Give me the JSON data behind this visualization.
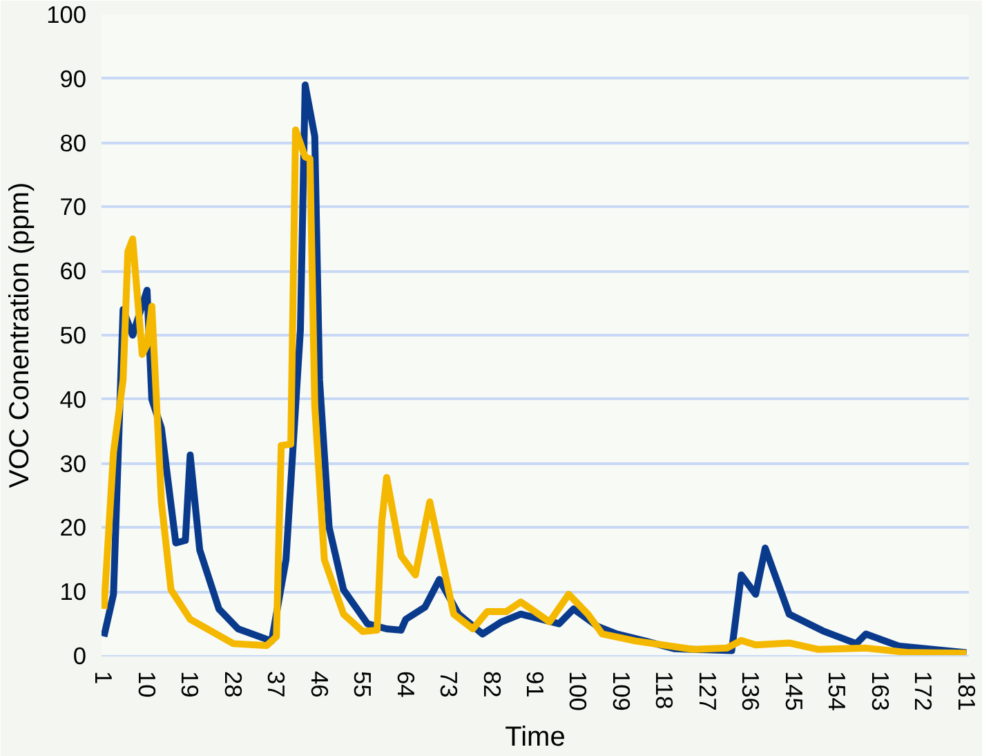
{
  "chart_data": {
    "type": "line",
    "xlabel": "Time",
    "ylabel": "VOC Conentration (ppm)",
    "xlim": [
      0.5,
      181.5
    ],
    "xticks": [
      1,
      10,
      19,
      28,
      37,
      46,
      55,
      64,
      73,
      82,
      91,
      100,
      109,
      118,
      127,
      136,
      145,
      154,
      163,
      172,
      181
    ],
    "ylim": [
      0,
      100
    ],
    "yticks": [
      0,
      10,
      20,
      30,
      40,
      50,
      60,
      70,
      80,
      90,
      100
    ],
    "grid": "y",
    "marker": "none",
    "line_style": "solid",
    "series": [
      {
        "color": "#0a3a8c",
        "x": [
          1,
          3,
          5,
          7,
          10,
          11,
          13,
          16,
          18,
          19,
          21,
          25,
          29,
          36,
          39,
          42,
          43,
          45,
          46,
          48,
          51,
          56,
          60,
          63,
          64,
          68,
          71,
          75,
          80,
          84,
          88,
          96,
          99,
          104,
          108,
          114,
          120,
          132,
          134,
          137,
          139,
          144,
          151,
          158,
          160,
          167,
          181
        ],
        "values": [
          3,
          9.6,
          54,
          50,
          57,
          40,
          35.5,
          17.6,
          18,
          31.3,
          16.5,
          7.3,
          4.2,
          2.3,
          15,
          50.8,
          89,
          81,
          43,
          20,
          10.3,
          5,
          4.2,
          4,
          5.7,
          7.6,
          11.9,
          6.5,
          3.4,
          5.3,
          6.5,
          5,
          7.3,
          4.6,
          3.4,
          2.3,
          1.1,
          0.8,
          12.6,
          9.6,
          16.8,
          6.5,
          3.9,
          1.9,
          3.4,
          1.5,
          0.5
        ]
      },
      {
        "color": "#f5b800",
        "x": [
          1,
          3,
          5,
          6,
          7,
          9,
          10,
          11,
          13,
          15,
          19,
          28,
          35,
          37,
          38,
          40,
          41,
          43,
          44,
          45,
          47,
          51,
          55,
          58,
          59,
          60,
          63,
          66,
          69,
          74,
          78,
          81,
          85,
          88,
          94,
          98,
          102,
          105,
          112,
          124,
          131,
          134,
          137,
          144,
          150,
          160,
          169,
          181
        ],
        "values": [
          7.3,
          31.7,
          43,
          63,
          65,
          47,
          48.5,
          54.5,
          24,
          10.3,
          5.7,
          1.9,
          1.6,
          3,
          32.8,
          33,
          82,
          77.8,
          77.5,
          39,
          15,
          6.5,
          3.8,
          4,
          21,
          27.8,
          15.6,
          12.6,
          24,
          6.5,
          4.2,
          6.9,
          6.9,
          8.4,
          5.3,
          9.6,
          6.5,
          3.4,
          2.3,
          1,
          1.2,
          2.4,
          1.7,
          2,
          1,
          1.2,
          0.5,
          0.4
        ]
      }
    ]
  }
}
